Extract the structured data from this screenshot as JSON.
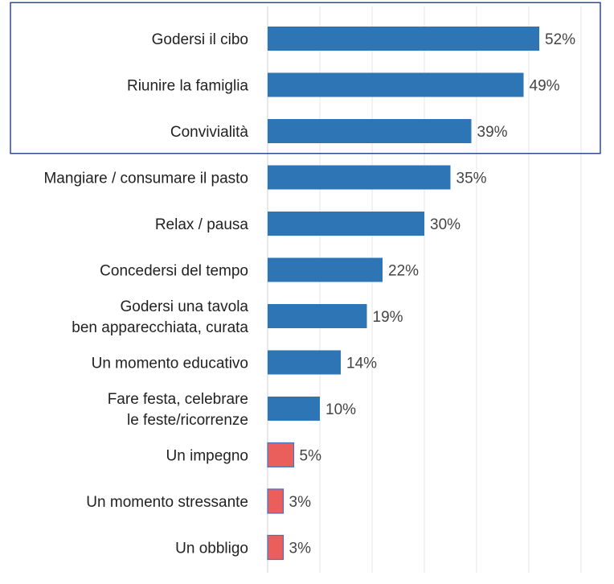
{
  "chart_data": {
    "type": "bar",
    "orientation": "horizontal",
    "title": "",
    "xlabel": "",
    "ylabel": "",
    "xlim": [
      0,
      60
    ],
    "grid": true,
    "legend": "none",
    "categories": [
      [
        "Godersi il cibo"
      ],
      [
        "Riunire la famiglia"
      ],
      [
        "Convivialità"
      ],
      [
        "Mangiare / consumare il pasto"
      ],
      [
        "Relax / pausa"
      ],
      [
        "Concedersi del tempo"
      ],
      [
        "Godersi una tavola",
        "ben apparecchiata, curata"
      ],
      [
        "Un momento educativo"
      ],
      [
        "Fare festa, celebrare",
        "le feste/ricorrenze"
      ],
      [
        "Un impegno"
      ],
      [
        "Un momento stressante"
      ],
      [
        "Un obbligo"
      ]
    ],
    "values": [
      52,
      49,
      39,
      35,
      30,
      22,
      19,
      14,
      10,
      5,
      3,
      3
    ],
    "value_labels": [
      "52%",
      "49%",
      "39%",
      "35%",
      "30%",
      "22%",
      "19%",
      "14%",
      "10%",
      "5%",
      "3%",
      "3%"
    ],
    "bar_kind": [
      "positive",
      "positive",
      "positive",
      "positive",
      "positive",
      "positive",
      "positive",
      "positive",
      "positive",
      "negative",
      "negative",
      "negative"
    ],
    "highlight_box_items": 3
  },
  "colors": {
    "positive": "#2e75b6",
    "negative": "#ea5f5c",
    "negative_border": "#4472c4",
    "highlight_box": "#2e4d8a",
    "grid": "#e6e6e6",
    "axis": "#d0d0d0"
  }
}
